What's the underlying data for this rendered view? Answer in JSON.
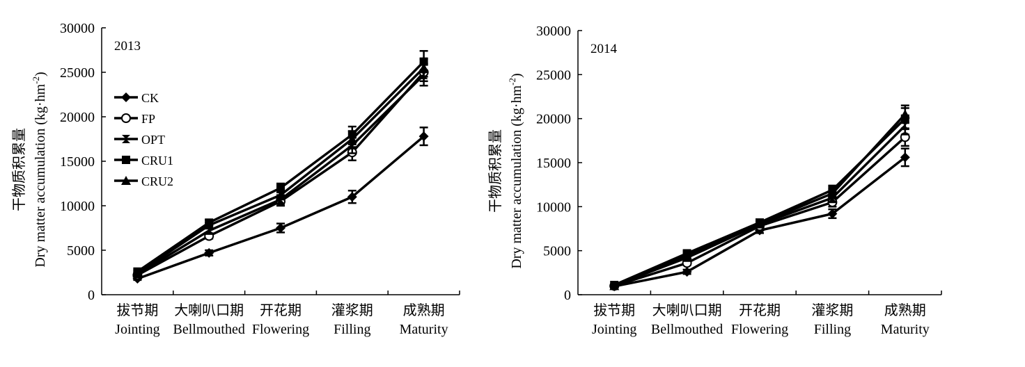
{
  "figure": {
    "ylabel_cn": "干物质积累量",
    "ylabel_en": "Dry matter accumulation (kg·hm",
    "ylabel_unit_sup": "-2",
    "ylabel_close": ")"
  },
  "legend": {
    "entries": [
      {
        "label": "CK",
        "marker": "diamond"
      },
      {
        "label": "FP",
        "marker": "open-circle"
      },
      {
        "label": "OPT",
        "marker": "hourglass"
      },
      {
        "label": "CRU1",
        "marker": "square"
      },
      {
        "label": "CRU2",
        "marker": "triangle"
      }
    ]
  },
  "chart_data": [
    {
      "type": "line",
      "title": "2013",
      "categories": [
        {
          "cn": "拔节期",
          "en": "Jointing"
        },
        {
          "cn": "大喇叭口期",
          "en": "Bellmouthed"
        },
        {
          "cn": "开花期",
          "en": "Flowering"
        },
        {
          "cn": "灌浆期",
          "en": "Filling"
        },
        {
          "cn": "成熟期",
          "en": "Maturity"
        }
      ],
      "ylim": [
        0,
        30000
      ],
      "yticks": [
        "0",
        "5000",
        "10000",
        "15000",
        "20000",
        "25000",
        "30000"
      ],
      "series": [
        {
          "name": "CK",
          "values": [
            1800,
            4700,
            7500,
            11000,
            17800
          ],
          "errors": [
            150,
            300,
            500,
            700,
            1000
          ]
        },
        {
          "name": "FP",
          "values": [
            2200,
            6600,
            10500,
            16000,
            25000
          ],
          "errors": [
            150,
            300,
            500,
            900,
            1000
          ]
        },
        {
          "name": "OPT",
          "values": [
            2300,
            7200,
            10700,
            16800,
            24700
          ],
          "errors": [
            150,
            300,
            500,
            900,
            1200
          ]
        },
        {
          "name": "CRU1",
          "values": [
            2600,
            8100,
            12000,
            18000,
            26200
          ],
          "errors": [
            150,
            300,
            500,
            900,
            1200
          ]
        },
        {
          "name": "CRU2",
          "values": [
            2400,
            7800,
            11200,
            17500,
            25500
          ],
          "errors": [
            150,
            300,
            500,
            900,
            1000
          ]
        }
      ]
    },
    {
      "type": "line",
      "title": "2014",
      "categories": [
        {
          "cn": "拔节期",
          "en": "Jointing"
        },
        {
          "cn": "大喇叭口期",
          "en": "Bellmouthed"
        },
        {
          "cn": "开花期",
          "en": "Flowering"
        },
        {
          "cn": "灌浆期",
          "en": "Filling"
        },
        {
          "cn": "成熟期",
          "en": "Maturity"
        }
      ],
      "ylim": [
        0,
        30000
      ],
      "yticks": [
        "0",
        "5000",
        "10000",
        "15000",
        "20000",
        "25000",
        "30000"
      ],
      "series": [
        {
          "name": "CK",
          "values": [
            950,
            2600,
            7300,
            9200,
            15600
          ],
          "errors": [
            100,
            250,
            300,
            500,
            1000
          ]
        },
        {
          "name": "FP",
          "values": [
            1000,
            3600,
            7800,
            10500,
            17900
          ],
          "errors": [
            100,
            250,
            300,
            500,
            1000
          ]
        },
        {
          "name": "OPT",
          "values": [
            1050,
            4200,
            8000,
            11000,
            19200
          ],
          "errors": [
            100,
            250,
            300,
            500,
            1000
          ]
        },
        {
          "name": "CRU1",
          "values": [
            1100,
            4700,
            8200,
            11900,
            20000
          ],
          "errors": [
            100,
            250,
            300,
            500,
            1200
          ]
        },
        {
          "name": "CRU2",
          "values": [
            1000,
            4500,
            8100,
            11500,
            20500
          ],
          "errors": [
            100,
            250,
            300,
            500,
            1000
          ]
        }
      ]
    }
  ]
}
